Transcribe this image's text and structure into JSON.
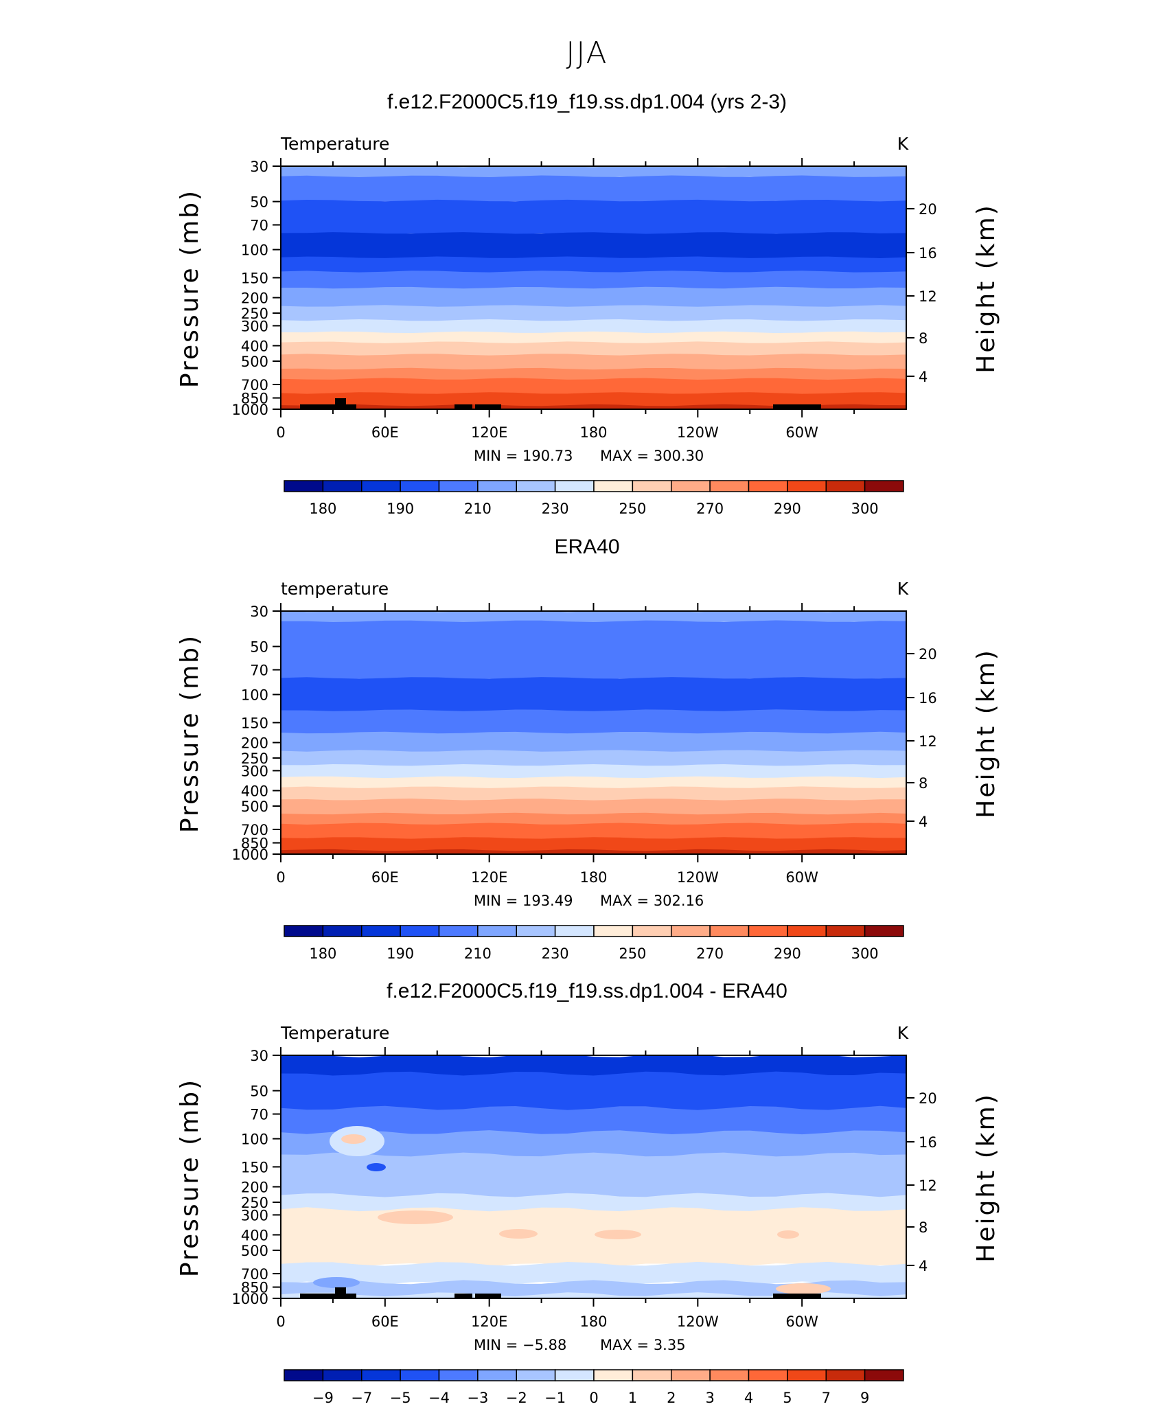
{
  "figure": {
    "title": "JJA"
  },
  "colors": {
    "t_levels": [
      "#000a8c",
      "#001fb3",
      "#0536d9",
      "#1f52f5",
      "#4d7aff",
      "#7fa6ff",
      "#a8c5ff",
      "#d4e6ff",
      "#ffedd9",
      "#ffcfb3",
      "#ffac88",
      "#ff8a5e",
      "#ff6838",
      "#f04818",
      "#c82b0b",
      "#8c0a0a"
    ],
    "d_levels": [
      "#000a8c",
      "#001fb3",
      "#0536d9",
      "#1f52f5",
      "#4d7aff",
      "#7fa6ff",
      "#a8c5ff",
      "#d4e6ff",
      "#ffedd9",
      "#ffcfb3",
      "#ffac88",
      "#ff8a5e",
      "#ff6838",
      "#f04818",
      "#c82b0b",
      "#8c0a0a"
    ],
    "land": "#000000"
  },
  "chart_data": [
    {
      "type": "heatmap",
      "title": "f.e12.F2000C5.f19_f19.ss.dp1.004 (yrs 2-3)",
      "left_label": "Temperature",
      "units": "K",
      "ylabel": "Pressure (mb)",
      "ylabel2": "Height (km)",
      "x_ticks": [
        "0",
        "60E",
        "120E",
        "180",
        "120W",
        "60W"
      ],
      "y_ticks": [
        "30",
        "50",
        "70",
        "100",
        "150",
        "200",
        "250",
        "300",
        "400",
        "500",
        "700",
        "850",
        "1000"
      ],
      "y2_ticks": [
        "20",
        "16",
        "12",
        "8",
        "4"
      ],
      "min_label": "MIN  =  190.73",
      "max_label": "MAX  =  300.30",
      "colorbar_ticks": [
        "180",
        "190",
        "210",
        "230",
        "250",
        "270",
        "290",
        "300"
      ],
      "profile_pressure": [
        30,
        40,
        60,
        100,
        150,
        200,
        250,
        300,
        400,
        500,
        700,
        850,
        1000
      ],
      "profile_level": [
        5,
        4,
        3,
        2,
        4,
        5,
        6,
        7,
        9,
        10,
        12,
        13,
        14
      ],
      "topography": true,
      "variant": "model"
    },
    {
      "type": "heatmap",
      "title": "ERA40",
      "left_label": "temperature",
      "units": "K",
      "ylabel": "Pressure (mb)",
      "ylabel2": "Height (km)",
      "x_ticks": [
        "0",
        "60E",
        "120E",
        "180",
        "120W",
        "60W"
      ],
      "y_ticks": [
        "30",
        "50",
        "70",
        "100",
        "150",
        "200",
        "250",
        "300",
        "400",
        "500",
        "700",
        "850",
        "1000"
      ],
      "y2_ticks": [
        "20",
        "16",
        "12",
        "8",
        "4"
      ],
      "min_label": "MIN  =  193.49",
      "max_label": "MAX  =  302.16",
      "colorbar_ticks": [
        "180",
        "190",
        "210",
        "230",
        "250",
        "270",
        "290",
        "300"
      ],
      "profile_pressure": [
        30,
        40,
        60,
        100,
        150,
        200,
        250,
        300,
        400,
        500,
        700,
        850,
        1000
      ],
      "profile_level": [
        5,
        4,
        4,
        3,
        4,
        5,
        6,
        7,
        9,
        10,
        12,
        13,
        14
      ],
      "topography": false,
      "variant": "obs"
    },
    {
      "type": "heatmap",
      "title": "f.e12.F2000C5.f19_f19.ss.dp1.004 - ERA40",
      "left_label": "Temperature",
      "units": "K",
      "ylabel": "Pressure (mb)",
      "ylabel2": "Height (km)",
      "x_ticks": [
        "0",
        "60E",
        "120E",
        "180",
        "120W",
        "60W"
      ],
      "y_ticks": [
        "30",
        "50",
        "70",
        "100",
        "150",
        "200",
        "250",
        "300",
        "400",
        "500",
        "700",
        "850",
        "1000"
      ],
      "y2_ticks": [
        "20",
        "16",
        "12",
        "8",
        "4"
      ],
      "min_label": "MIN  =    −5.88",
      "max_label": "MAX  =      3.35",
      "colorbar_ticks": [
        "−9",
        "−7",
        "−5",
        "−4",
        "−3",
        "−2",
        "−1",
        "0",
        "1",
        "2",
        "3",
        "4",
        "5",
        "7",
        "9"
      ],
      "profile_pressure": [
        30,
        50,
        80,
        100,
        150,
        200,
        250,
        300,
        400,
        500,
        700,
        850,
        1000
      ],
      "profile_level": [
        2,
        3,
        4,
        5,
        6,
        6,
        7,
        8,
        8,
        8,
        7,
        6,
        7
      ],
      "topography": true,
      "variant": "diff"
    }
  ]
}
